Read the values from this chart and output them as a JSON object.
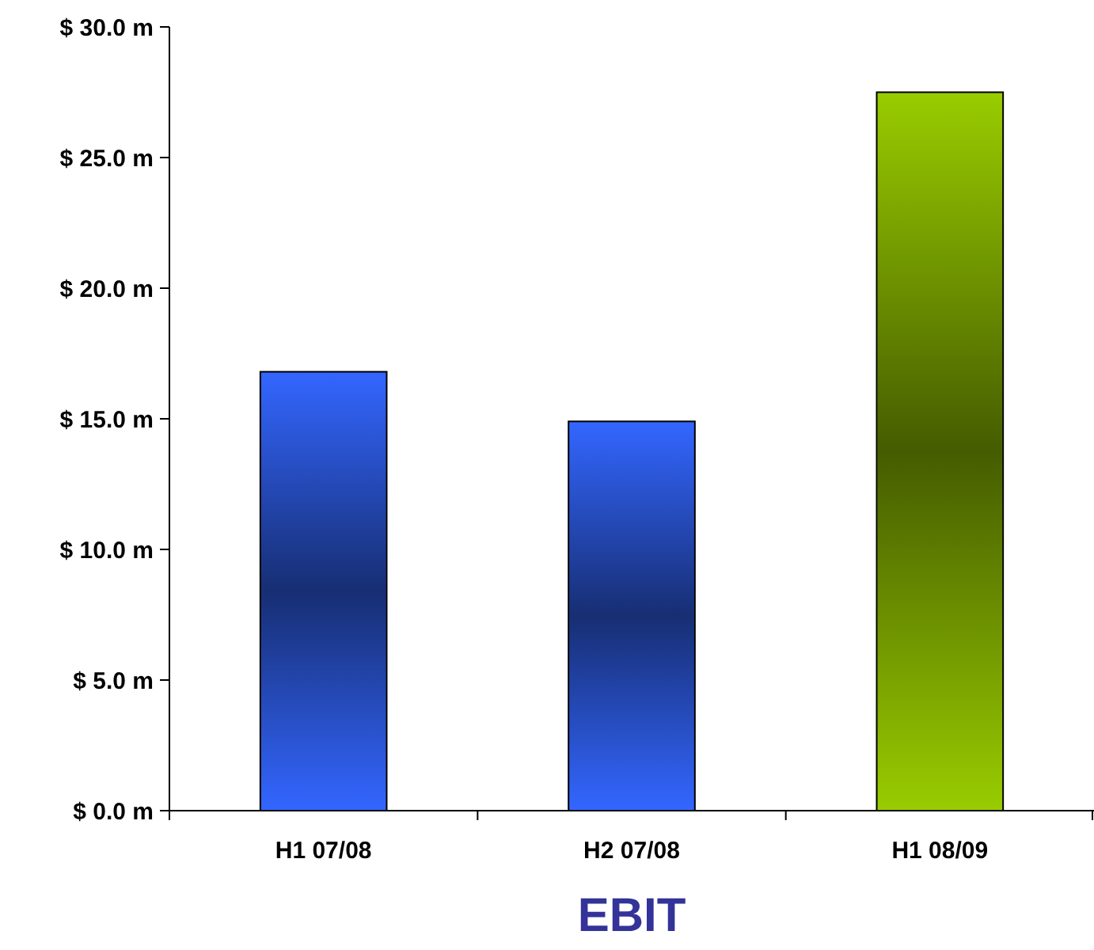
{
  "chart_data": {
    "type": "bar",
    "title": "EBIT",
    "categories": [
      "H1 07/08",
      "H2 07/08",
      "H1 08/09"
    ],
    "values": [
      16.8,
      14.9,
      27.5
    ],
    "colors": [
      "#3366ff",
      "#3366ff",
      "#99cc00"
    ],
    "ylim": [
      0,
      30
    ],
    "yticks": [
      {
        "value": 0,
        "label": "$ 0.0 m"
      },
      {
        "value": 5,
        "label": "$ 5.0 m"
      },
      {
        "value": 10,
        "label": "$ 10.0 m"
      },
      {
        "value": 15,
        "label": "$ 15.0 m"
      },
      {
        "value": 20,
        "label": "$ 20.0 m"
      },
      {
        "value": 25,
        "label": "$ 25.0 m"
      },
      {
        "value": 30,
        "label": "$ 30.0 m"
      }
    ]
  }
}
